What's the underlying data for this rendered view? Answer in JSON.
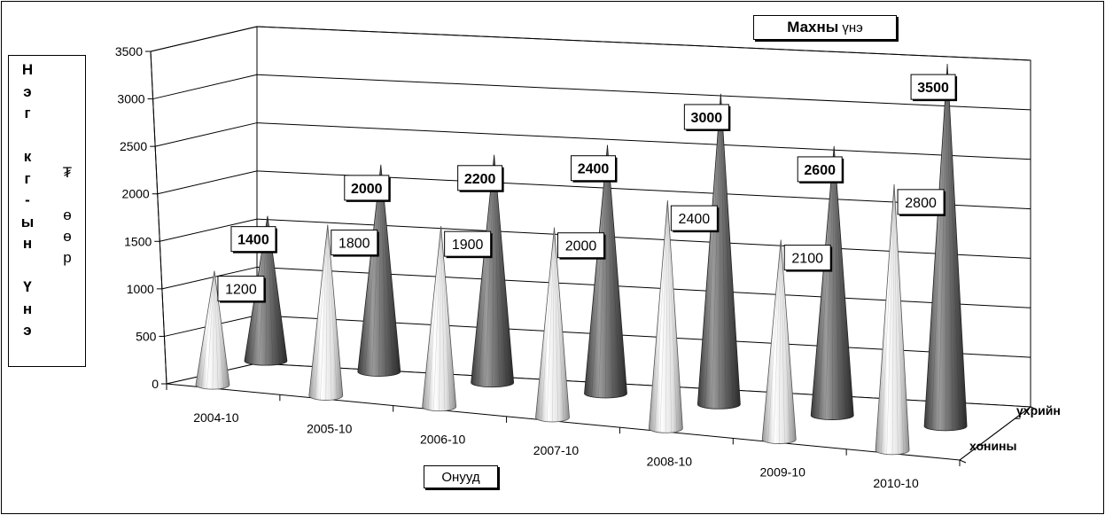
{
  "chart_data": {
    "type": "bar",
    "bar_shape": "cone",
    "title_bold": "Махны",
    "title_rest": "үнэ",
    "ylabel_main": [
      "Н",
      "э",
      "г",
      "",
      "к",
      "г",
      "-",
      "ы",
      "н",
      "",
      "Ү",
      "н",
      "э"
    ],
    "ylabel_unit": [
      "₮",
      "",
      "ө",
      "ө",
      "р"
    ],
    "xlabel": "Онууд",
    "categories": [
      "2004-10",
      "2005-10",
      "2006-10",
      "2007-10",
      "2008-10",
      "2009-10",
      "2010-10"
    ],
    "yticks": [
      "0",
      "500",
      "1000",
      "1500",
      "2000",
      "2500",
      "3000",
      "3500"
    ],
    "ylim": [
      0,
      3500
    ],
    "grid": true,
    "series": [
      {
        "name": "хонины",
        "values": [
          1200,
          1800,
          1900,
          2000,
          2400,
          2100,
          2800
        ],
        "color": "#e6e6e6"
      },
      {
        "name": "үхрийн",
        "values": [
          1400,
          2000,
          2200,
          2400,
          3000,
          2600,
          3500
        ],
        "color": "#666666"
      }
    ],
    "data_labels": {
      "хонины": [
        "1200",
        "1800",
        "1900",
        "2000",
        "2400",
        "2100",
        "2800"
      ],
      "үхрийн": [
        "1400",
        "2000",
        "2200",
        "2400",
        "3000",
        "2600",
        "3500"
      ]
    }
  }
}
